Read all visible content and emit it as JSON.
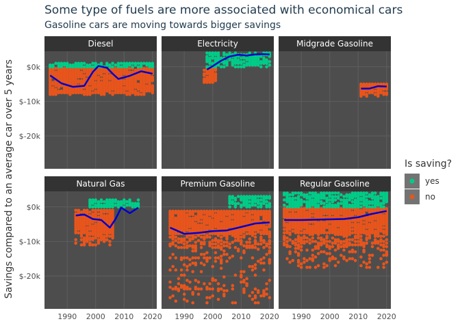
{
  "title": "Some type of fuels are more associated with economical cars",
  "subtitle": "Gasoline cars are moving towards bigger savings",
  "colors": {
    "panel_bg": "#4d4d4d",
    "strip_bg": "#333333",
    "grid": "#5e5e5e",
    "yes": "#00cc88",
    "no": "#e8551c",
    "smooth": "#0000cc"
  },
  "chart_data": {
    "type": "scatter",
    "facets": [
      "Diesel",
      "Electricity",
      "Midgrade Gasoline",
      "Natural Gas",
      "Premium Gasoline",
      "Regular Gasoline"
    ],
    "ylabel": "Savings compared to an average car over 5 years",
    "xlabel": "",
    "x_ticks": [
      1990,
      2000,
      2010,
      2020
    ],
    "y_ticks": [
      0,
      -10000,
      -20000
    ],
    "y_tick_labels": [
      "$0k",
      "$-10k",
      "$-20k"
    ],
    "xlim": [
      1982,
      2021.5
    ],
    "ylim": [
      -29500,
      4500
    ],
    "legend": {
      "title": "Is saving?",
      "entries": [
        "yes",
        "no"
      ],
      "position": "right"
    },
    "series": [
      {
        "facet": "Diesel",
        "yes_years": [
          1984,
          2020
        ],
        "yes_values": [
          0,
          1250
        ],
        "no_years": [
          1984,
          2020
        ],
        "no_values": [
          -8000,
          -500
        ],
        "smooth_x": [
          1984,
          1988,
          1992,
          1996,
          1999,
          2001,
          2004,
          2006,
          2008,
          2012,
          2016,
          2020
        ],
        "smooth_y": [
          -2500,
          -4800,
          -5800,
          -5500,
          -1500,
          250,
          -300,
          -2000,
          -3500,
          -2600,
          -1300,
          -2000
        ]
      },
      {
        "facet": "Electricity",
        "yes_years": [
          1998,
          2020
        ],
        "yes_values": [
          0,
          4250
        ],
        "no_years": [
          1997,
          2001
        ],
        "no_values": [
          -4500,
          -500
        ],
        "smooth_x": [
          1998,
          2000,
          2003,
          2006,
          2009,
          2012,
          2015,
          2018,
          2020
        ],
        "smooth_y": [
          -800,
          200,
          1800,
          3000,
          3500,
          3250,
          3600,
          3650,
          3600
        ]
      },
      {
        "facet": "Midgrade Gasoline",
        "yes_years": [],
        "yes_values": [],
        "no_years": [
          2011,
          2020
        ],
        "no_values": [
          -8750,
          -5000
        ],
        "smooth_x": [
          2011,
          2014,
          2017,
          2020
        ],
        "smooth_y": [
          -6300,
          -6300,
          -5600,
          -5700
        ]
      },
      {
        "facet": "Natural Gas",
        "yes_years": [
          1998,
          2015
        ],
        "yes_values": [
          0,
          2000
        ],
        "no_years": [
          1993,
          2006
        ],
        "no_values": [
          -11000,
          -1000
        ],
        "smooth_x": [
          1993,
          1996,
          1999,
          2002,
          2005,
          2007,
          2009,
          2012,
          2015
        ],
        "smooth_y": [
          -2500,
          -2200,
          -3500,
          -3800,
          -6000,
          -3500,
          -200,
          -1800,
          -200
        ]
      },
      {
        "facet": "Premium Gasoline",
        "yes_years": [
          2006,
          2020
        ],
        "yes_values": [
          0,
          3250
        ],
        "no_years": [
          1985,
          2020
        ],
        "no_values": [
          -28000,
          -1250
        ],
        "smooth_x": [
          1985,
          1990,
          1995,
          2000,
          2005,
          2010,
          2015,
          2020
        ],
        "smooth_y": [
          -6000,
          -7800,
          -7500,
          -7000,
          -6800,
          -5800,
          -4800,
          -4500
        ]
      },
      {
        "facet": "Regular Gasoline",
        "yes_years": [
          1984,
          2020
        ],
        "yes_values": [
          0,
          4250
        ],
        "no_years": [
          1984,
          2020
        ],
        "no_values": [
          -17500,
          -500
        ],
        "smooth_x": [
          1984,
          1990,
          1995,
          2000,
          2005,
          2010,
          2015,
          2020
        ],
        "smooth_y": [
          -3800,
          -3800,
          -3700,
          -3600,
          -3500,
          -3000,
          -2000,
          -1200
        ]
      }
    ]
  }
}
